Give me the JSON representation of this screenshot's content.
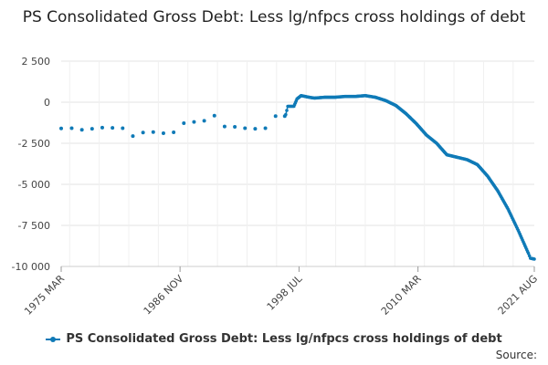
{
  "chart_data": {
    "type": "scatter",
    "title": "PS Consolidated Gross Debt: Less lg/nfpcs cross holdings of debt",
    "xlabel": "",
    "ylabel": "",
    "x_range": [
      1975.17,
      2021.58
    ],
    "ylim": [
      -10000,
      2500
    ],
    "y_ticks": [
      2500,
      0,
      -2500,
      -5000,
      -7500,
      -10000
    ],
    "y_tick_labels": [
      "2 500",
      "0",
      "-2 500",
      "-5 000",
      "-7 500",
      "-10 000"
    ],
    "x_ticks": [
      1975.17,
      1986.83,
      1998.5,
      2010.17,
      2021.58
    ],
    "x_tick_labels": [
      "1975 MAR",
      "1986 NOV",
      "1998 JUL",
      "2010 MAR",
      "2021 AUG"
    ],
    "grid": true,
    "legend_position": "bottom",
    "color": "#0f7ab7",
    "series": [
      {
        "name": "PS Consolidated Gross Debt: Less lg/nfpcs cross holdings of debt",
        "sparse_points": [
          [
            1975.17,
            -1600
          ],
          [
            1976.2,
            -1580
          ],
          [
            1977.2,
            -1680
          ],
          [
            1978.2,
            -1620
          ],
          [
            1979.2,
            -1550
          ],
          [
            1980.2,
            -1560
          ],
          [
            1981.2,
            -1580
          ],
          [
            1982.2,
            -2060
          ],
          [
            1983.2,
            -1850
          ],
          [
            1984.2,
            -1820
          ],
          [
            1985.2,
            -1890
          ],
          [
            1986.2,
            -1830
          ],
          [
            1987.2,
            -1280
          ],
          [
            1988.2,
            -1200
          ],
          [
            1989.2,
            -1130
          ],
          [
            1990.2,
            -820
          ],
          [
            1991.2,
            -1480
          ],
          [
            1992.2,
            -1500
          ],
          [
            1993.2,
            -1580
          ],
          [
            1994.2,
            -1620
          ],
          [
            1995.2,
            -1580
          ],
          [
            1996.2,
            -850
          ],
          [
            1997.1,
            -850
          ]
        ],
        "dense_anchors": [
          [
            1997.2,
            -750
          ],
          [
            1997.4,
            -250
          ],
          [
            1998.0,
            -250
          ],
          [
            1998.3,
            200
          ],
          [
            1998.7,
            400
          ],
          [
            1999.5,
            300
          ],
          [
            2000.0,
            250
          ],
          [
            2001.0,
            300
          ],
          [
            2002.0,
            300
          ],
          [
            2003.0,
            350
          ],
          [
            2004.0,
            350
          ],
          [
            2005.0,
            400
          ],
          [
            2006.0,
            300
          ],
          [
            2007.0,
            100
          ],
          [
            2008.0,
            -200
          ],
          [
            2009.0,
            -700
          ],
          [
            2010.0,
            -1300
          ],
          [
            2011.0,
            -2000
          ],
          [
            2012.0,
            -2500
          ],
          [
            2013.0,
            -3200
          ],
          [
            2014.0,
            -3350
          ],
          [
            2015.0,
            -3500
          ],
          [
            2016.0,
            -3800
          ],
          [
            2017.0,
            -4500
          ],
          [
            2018.0,
            -5400
          ],
          [
            2019.0,
            -6500
          ],
          [
            2020.0,
            -7800
          ],
          [
            2021.0,
            -9200
          ],
          [
            2021.2,
            -9500
          ],
          [
            2021.58,
            -9550
          ]
        ]
      }
    ]
  },
  "legend": {
    "label": "PS Consolidated Gross Debt: Less lg/nfpcs cross holdings of debt"
  },
  "source_label": "Source:"
}
